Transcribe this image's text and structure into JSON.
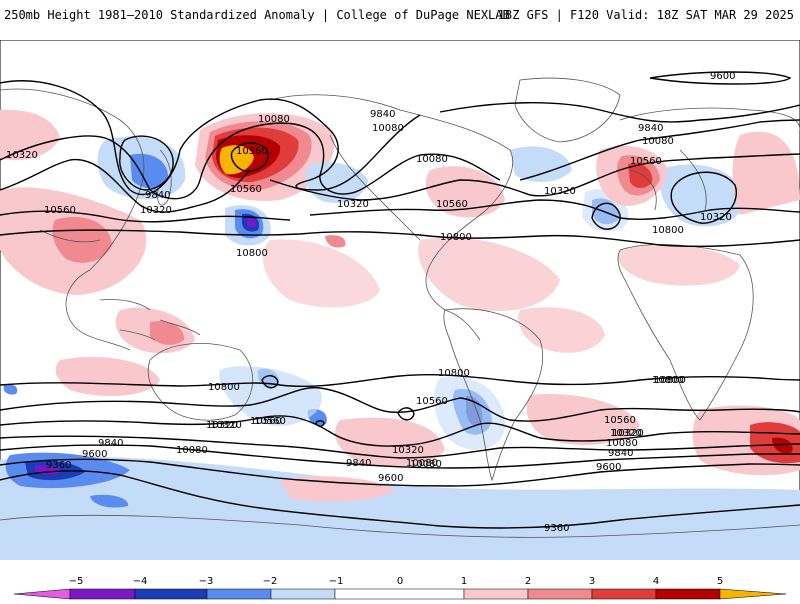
{
  "header": {
    "title_left": "250mb Height 1981–2010 Standardized Anomaly | College of DuPage NEXLAB",
    "title_right": "18Z GFS | F120 Valid: 18Z SAT MAR 29 2025"
  },
  "colors": {
    "land_border": "#666666",
    "contour": "#000000",
    "neg5": "#e45ce4",
    "neg4": "#7a18c8",
    "neg3": "#1a3cb4",
    "neg2": "#5a8cf0",
    "neg1": "#c4dcf8",
    "pos1": "#f8c8cc",
    "pos2": "#f08a90",
    "pos3": "#e03c3c",
    "pos4": "#b40000",
    "pos5": "#f8b400"
  },
  "contour_labels": [
    {
      "text": "9600"
    },
    {
      "text": "9840"
    },
    {
      "text": "10080"
    },
    {
      "text": "10320"
    },
    {
      "text": "10560"
    },
    {
      "text": "10080"
    },
    {
      "text": "10560"
    },
    {
      "text": "9840"
    },
    {
      "text": "10320"
    },
    {
      "text": "10560"
    },
    {
      "text": "10800"
    },
    {
      "text": "10320"
    },
    {
      "text": "10080"
    },
    {
      "text": "10320"
    },
    {
      "text": "10560"
    },
    {
      "text": "10800"
    },
    {
      "text": "9840"
    },
    {
      "text": "10080"
    },
    {
      "text": "10560"
    },
    {
      "text": "10320"
    },
    {
      "text": "10800"
    },
    {
      "text": "10800"
    },
    {
      "text": "10800"
    },
    {
      "text": "10800"
    },
    {
      "text": "10560"
    },
    {
      "text": "10560"
    },
    {
      "text": "10320"
    },
    {
      "text": "10320"
    },
    {
      "text": "10080"
    },
    {
      "text": "9840"
    },
    {
      "text": "9600"
    },
    {
      "text": "9360"
    },
    {
      "text": "9840"
    },
    {
      "text": "9600"
    },
    {
      "text": "10080"
    },
    {
      "text": "10320"
    },
    {
      "text": "10560"
    },
    {
      "text": "10320"
    },
    {
      "text": "10080"
    },
    {
      "text": "9840"
    },
    {
      "text": "9600"
    },
    {
      "text": "9360"
    },
    {
      "text": "10800"
    },
    {
      "text": "10560"
    },
    {
      "text": "10320"
    },
    {
      "text": "10080"
    }
  ],
  "colorbar": {
    "ticks": [
      "−5",
      "−4",
      "−3",
      "−2",
      "−1",
      "0",
      "1",
      "2",
      "3",
      "4",
      "5"
    ]
  }
}
